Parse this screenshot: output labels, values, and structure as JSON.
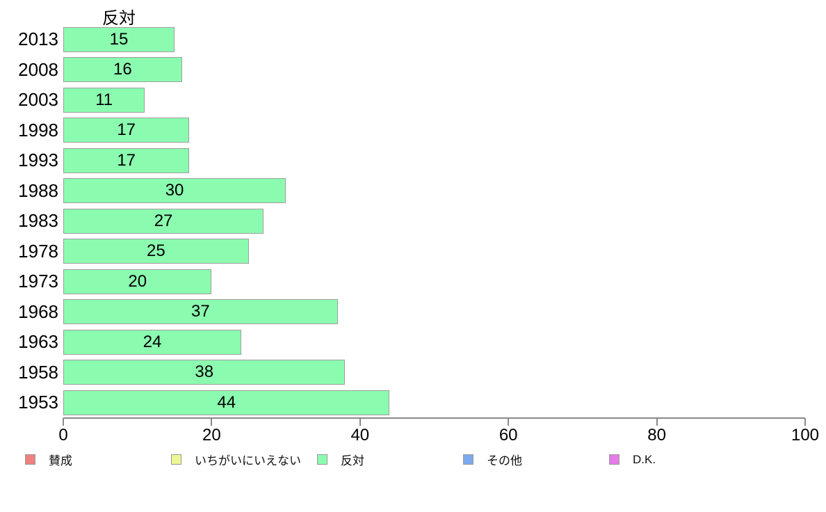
{
  "chart_data": {
    "type": "bar",
    "orientation": "horizontal",
    "title": "反対",
    "categories": [
      "2013",
      "2008",
      "2003",
      "1998",
      "1993",
      "1988",
      "1983",
      "1978",
      "1973",
      "1968",
      "1963",
      "1958",
      "1953"
    ],
    "values": [
      15,
      16,
      11,
      17,
      17,
      30,
      27,
      25,
      20,
      37,
      24,
      38,
      44
    ],
    "xlabel": "",
    "ylabel": "",
    "xlim": [
      0,
      100
    ],
    "x_ticks": [
      0,
      20,
      40,
      60,
      80,
      100
    ],
    "grid": false,
    "bar_color": "#8BFBB0",
    "bar_border_color": "#9e9e9e",
    "axis_color": "#888888",
    "legend": {
      "position": "bottom",
      "entries": [
        {
          "label": "賛成",
          "color": "#F08080"
        },
        {
          "label": "いちがいにいえない",
          "color": "#EDF693"
        },
        {
          "label": "反対",
          "color": "#8BFBB0"
        },
        {
          "label": "その他",
          "color": "#7BA9ED"
        },
        {
          "label": "D.K.",
          "color": "#E67BE6"
        }
      ]
    }
  }
}
